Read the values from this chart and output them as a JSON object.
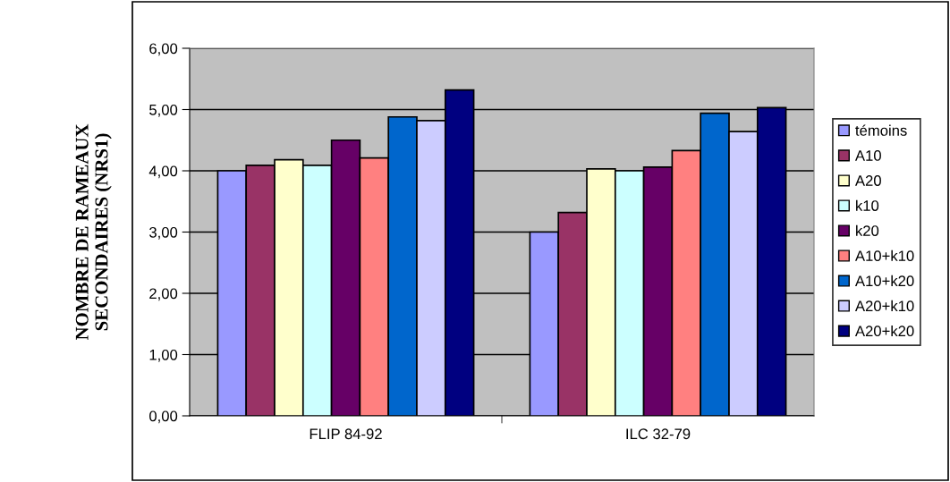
{
  "chart_data": {
    "type": "bar",
    "ylabel": "NOMBRE DE RAMEAUX\nSECONDAIRES (NRS1)",
    "categories": [
      "FLIP 84-92",
      "ILC 32-79"
    ],
    "series": [
      {
        "name": "témoins",
        "color": "#9999ff",
        "values": [
          4.0,
          3.0
        ]
      },
      {
        "name": "A10",
        "color": "#993366",
        "values": [
          4.09,
          3.32
        ]
      },
      {
        "name": "A20",
        "color": "#ffffcc",
        "values": [
          4.18,
          4.03
        ]
      },
      {
        "name": "k10",
        "color": "#ccffff",
        "values": [
          4.09,
          4.0
        ]
      },
      {
        "name": "k20",
        "color": "#660066",
        "values": [
          4.5,
          4.06
        ]
      },
      {
        "name": "A10+k10",
        "color": "#ff8080",
        "values": [
          4.21,
          4.33
        ]
      },
      {
        "name": "A10+k20",
        "color": "#0066cc",
        "values": [
          4.88,
          4.94
        ]
      },
      {
        "name": "A20+k10",
        "color": "#ccccff",
        "values": [
          4.82,
          4.64
        ]
      },
      {
        "name": "A20+k20",
        "color": "#000080",
        "values": [
          5.32,
          5.03
        ]
      }
    ],
    "ylim": [
      0,
      6
    ],
    "yticks": [
      {
        "value": 0,
        "label": "0,00"
      },
      {
        "value": 1,
        "label": "1,00"
      },
      {
        "value": 2,
        "label": "2,00"
      },
      {
        "value": 3,
        "label": "3,00"
      },
      {
        "value": 4,
        "label": "4,00"
      },
      {
        "value": 5,
        "label": "5,00"
      },
      {
        "value": 6,
        "label": "6,00"
      }
    ],
    "grid": "y",
    "legend": "right"
  }
}
